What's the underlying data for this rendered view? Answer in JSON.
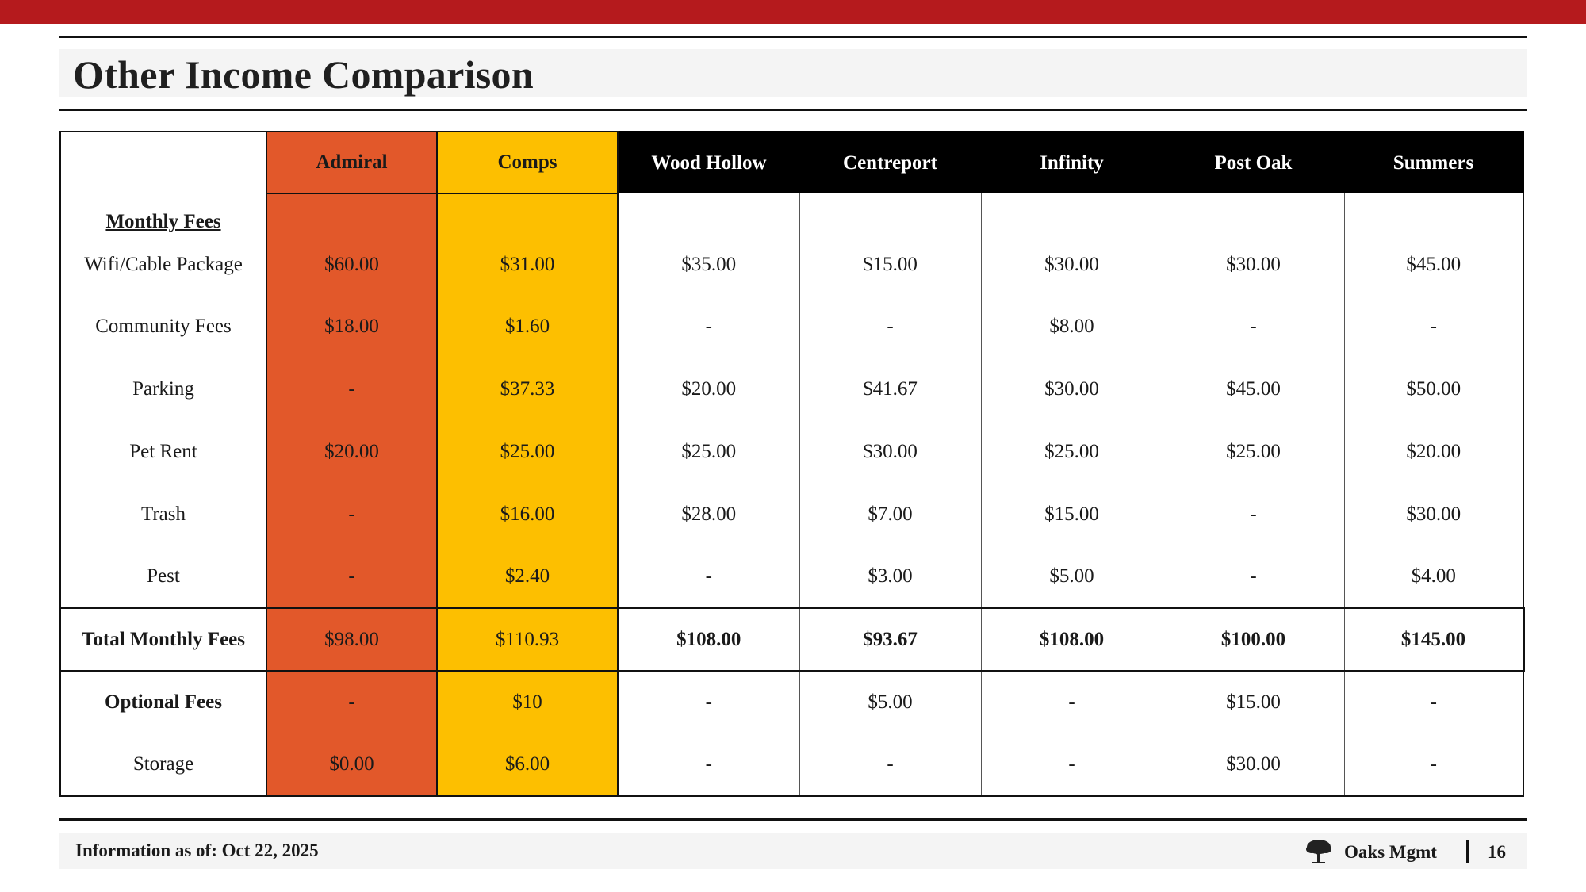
{
  "page": {
    "title": "Other Income Comparison",
    "accent_color": "#b51a1d"
  },
  "table": {
    "columns": [
      "Admiral",
      "Comps",
      "Wood Hollow",
      "Centreport",
      "Infinity",
      "Post Oak",
      "Summers"
    ],
    "column_colors": {
      "Admiral": "#e2582a",
      "Comps": "#fdbf00",
      "others": "#000000"
    },
    "section_label": "Monthly Fees",
    "rows": [
      {
        "label": "Wifi/Cable Package",
        "values": [
          "$60.00",
          "$31.00",
          "$35.00",
          "$15.00",
          "$30.00",
          "$30.00",
          "$45.00"
        ]
      },
      {
        "label": "Community Fees",
        "values": [
          "$18.00",
          "$1.60",
          "-",
          "-",
          "$8.00",
          "-",
          "-"
        ]
      },
      {
        "label": "Parking",
        "values": [
          "-",
          "$37.33",
          "$20.00",
          "$41.67",
          "$30.00",
          "$45.00",
          "$50.00"
        ]
      },
      {
        "label": "Pet Rent",
        "values": [
          "$20.00",
          "$25.00",
          "$25.00",
          "$30.00",
          "$25.00",
          "$25.00",
          "$20.00"
        ]
      },
      {
        "label": "Trash",
        "values": [
          "-",
          "$16.00",
          "$28.00",
          "$7.00",
          "$15.00",
          "-",
          "$30.00"
        ]
      },
      {
        "label": "Pest",
        "values": [
          "-",
          "$2.40",
          "-",
          "$3.00",
          "$5.00",
          "-",
          "$4.00"
        ]
      }
    ],
    "total": {
      "label": "Total Monthly Fees",
      "values": [
        "$98.00",
        "$110.93",
        "$108.00",
        "$93.67",
        "$108.00",
        "$100.00",
        "$145.00"
      ]
    },
    "optional": [
      {
        "label": "Optional Fees",
        "values": [
          "-",
          "$10",
          "-",
          "$5.00",
          "-",
          "$15.00",
          "-"
        ]
      },
      {
        "label": "Storage",
        "values": [
          "$0.00",
          "$6.00",
          "-",
          "-",
          "-",
          "$30.00",
          "-"
        ]
      }
    ]
  },
  "footer": {
    "info": "Information as of: Oct 22, 2025",
    "brand": "Oaks Mgmt",
    "brand_icon": "oak-tree-icon",
    "page_number": "16"
  }
}
